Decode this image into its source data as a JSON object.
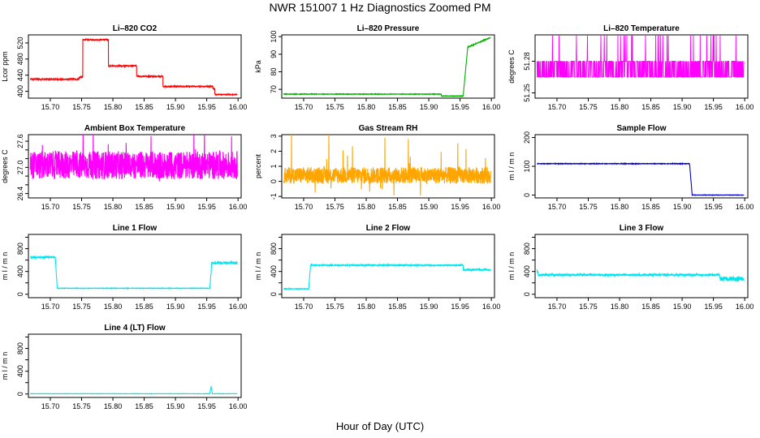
{
  "page": {
    "title": "NWR  151007  1 Hz Diagnostics Zoomed PM",
    "x_axis_title": "Hour of Day (UTC)"
  },
  "chart_data": [
    {
      "id": "co2",
      "type": "line",
      "title": "Li–820 CO2",
      "ylabel": "Lcor ppm",
      "color": "#ff0000",
      "xlim": [
        15.665,
        16.005
      ],
      "ylim": [
        383,
        540
      ],
      "yticks": [
        400,
        440,
        480,
        520
      ],
      "ytick_labels": [
        "400",
        "440",
        "480",
        "520"
      ],
      "xticks": [
        15.7,
        15.75,
        15.8,
        15.85,
        15.9,
        15.95,
        16.0
      ],
      "xtick_labels": [
        "15.70",
        "15.75",
        "15.80",
        "15.85",
        "15.90",
        "15.95",
        "16.00"
      ],
      "segments": [
        {
          "x0": 15.668,
          "x1": 15.746,
          "level": 430,
          "noise": 1.5
        },
        {
          "x0": 15.746,
          "x1": 15.752,
          "level": 435,
          "noise": 2
        },
        {
          "x0": 15.752,
          "x1": 15.793,
          "level": 528,
          "noise": 1.5
        },
        {
          "x0": 15.793,
          "x1": 15.838,
          "level": 463,
          "noise": 1.5
        },
        {
          "x0": 15.838,
          "x1": 15.88,
          "level": 437,
          "noise": 1.5
        },
        {
          "x0": 15.88,
          "x1": 15.96,
          "level": 412,
          "noise": 1.5
        },
        {
          "x0": 15.96,
          "x1": 15.963,
          "level": 407,
          "noise": 2
        },
        {
          "x0": 15.963,
          "x1": 15.999,
          "level": 392,
          "noise": 1
        }
      ]
    },
    {
      "id": "pressure",
      "type": "line",
      "title": "Li–820 Pressure",
      "ylabel": "kPa",
      "color": "#00b000",
      "xlim": [
        15.665,
        16.005
      ],
      "ylim": [
        65,
        101
      ],
      "yticks": [
        70,
        80,
        90,
        100
      ],
      "ytick_labels": [
        "70",
        "80",
        "90",
        "100"
      ],
      "xticks": [
        15.7,
        15.75,
        15.8,
        15.85,
        15.9,
        15.95,
        16.0
      ],
      "xtick_labels": [
        "15.70",
        "15.75",
        "15.80",
        "15.85",
        "15.90",
        "15.95",
        "16.00"
      ],
      "segments": [
        {
          "x0": 15.668,
          "x1": 15.92,
          "level": 67.3,
          "noise": 0.15
        },
        {
          "x0": 15.92,
          "x1": 15.955,
          "level": 66.2,
          "noise": 0.15
        },
        {
          "x0": 15.955,
          "x1": 15.962,
          "level_from": 66.5,
          "level_to": 93,
          "noise": 0.3
        },
        {
          "x0": 15.962,
          "x1": 15.999,
          "level_from": 94,
          "level_to": 99.5,
          "noise": 0.2
        }
      ]
    },
    {
      "id": "temperature",
      "type": "line",
      "title": "Li–820 Temperature",
      "ylabel": "degrees C",
      "color": "#ff00ff",
      "xlim": [
        15.665,
        16.005
      ],
      "ylim": [
        51.245,
        51.305
      ],
      "yticks": [
        51.25,
        51.28
      ],
      "ytick_labels": [
        "51.25",
        "51.28"
      ],
      "xticks": [
        15.7,
        15.75,
        15.8,
        15.85,
        15.9,
        15.95,
        16.0
      ],
      "xtick_labels": [
        "15.70",
        "15.75",
        "15.80",
        "15.85",
        "15.90",
        "15.95",
        "16.00"
      ],
      "digital": {
        "x0": 15.668,
        "x1": 15.999,
        "base": 51.28,
        "low": 51.265,
        "high": 51.305,
        "prob_low": 0.55,
        "prob_high": 0.05
      }
    },
    {
      "id": "box-temp",
      "type": "line",
      "title": "Ambient Box Temperature",
      "ylabel": "degrees C",
      "color": "#ff00ff",
      "xlim": [
        15.665,
        16.005
      ],
      "ylim": [
        26.3,
        27.75
      ],
      "yticks": [
        26.4,
        26.6,
        26.8,
        27.0,
        27.2,
        27.4,
        27.6
      ],
      "ytick_labels": [
        "26.4",
        "",
        "",
        "27.0",
        "",
        "",
        "27.6"
      ],
      "xticks": [
        15.7,
        15.75,
        15.8,
        15.85,
        15.9,
        15.95,
        16.0
      ],
      "xtick_labels": [
        "15.70",
        "15.75",
        "15.80",
        "15.85",
        "15.90",
        "15.95",
        "16.00"
      ],
      "noise_series": {
        "x0": 15.668,
        "x1": 15.999,
        "mean": 27.05,
        "amp": 0.32,
        "spike": 0.62
      }
    },
    {
      "id": "rh",
      "type": "line",
      "title": "Gas Stream RH",
      "ylabel": "percent",
      "color": "#ffa500",
      "xlim": [
        15.665,
        16.005
      ],
      "ylim": [
        -1.1,
        3.1
      ],
      "yticks": [
        -1,
        0,
        1,
        2,
        3
      ],
      "ytick_labels": [
        "-1",
        "0",
        "1",
        "2",
        "3"
      ],
      "xticks": [
        15.7,
        15.75,
        15.8,
        15.85,
        15.9,
        15.95,
        16.0
      ],
      "xtick_labels": [
        "15.70",
        "15.75",
        "15.80",
        "15.85",
        "15.90",
        "15.95",
        "16.00"
      ],
      "noise_series": {
        "x0": 15.668,
        "x1": 15.999,
        "mean": 0.4,
        "amp": 0.55,
        "spike": 2.4
      }
    },
    {
      "id": "sample-flow",
      "type": "line",
      "title": "Sample Flow",
      "ylabel": "m l / m n",
      "color": "#0000cc",
      "xlim": [
        15.665,
        16.005
      ],
      "ylim": [
        -10,
        210
      ],
      "yticks": [
        0,
        100,
        200
      ],
      "ytick_labels": [
        "0",
        "100",
        "200"
      ],
      "xticks": [
        15.7,
        15.75,
        15.8,
        15.85,
        15.9,
        15.95,
        16.0
      ],
      "xtick_labels": [
        "15.70",
        "15.75",
        "15.80",
        "15.85",
        "15.90",
        "15.95",
        "16.00"
      ],
      "segments": [
        {
          "x0": 15.668,
          "x1": 15.912,
          "level": 109,
          "noise": 1
        },
        {
          "x0": 15.912,
          "x1": 15.916,
          "level_from": 106,
          "level_to": 2,
          "noise": 1
        },
        {
          "x0": 15.916,
          "x1": 15.999,
          "level": 0,
          "noise": 0.6
        }
      ]
    },
    {
      "id": "line1-flow",
      "type": "line",
      "title": "Line 1 Flow",
      "ylabel": "m l / m n",
      "color": "#00e5ee",
      "xlim": [
        15.665,
        16.005
      ],
      "ylim": [
        -60,
        1050
      ],
      "yticks": [
        0,
        200,
        400,
        600,
        800,
        1000
      ],
      "ytick_labels": [
        "0",
        "",
        "400",
        "",
        "800",
        ""
      ],
      "xticks": [
        15.7,
        15.75,
        15.8,
        15.85,
        15.9,
        15.95,
        16.0
      ],
      "xtick_labels": [
        "15.70",
        "15.75",
        "15.80",
        "15.85",
        "15.90",
        "15.95",
        "16.00"
      ],
      "segments": [
        {
          "x0": 15.668,
          "x1": 15.708,
          "level": 650,
          "noise": 15
        },
        {
          "x0": 15.708,
          "x1": 15.711,
          "level_from": 640,
          "level_to": 110,
          "noise": 5
        },
        {
          "x0": 15.711,
          "x1": 15.955,
          "level": 105,
          "noise": 4
        },
        {
          "x0": 15.955,
          "x1": 15.958,
          "level_from": 110,
          "level_to": 540,
          "noise": 5
        },
        {
          "x0": 15.958,
          "x1": 15.999,
          "level": 550,
          "noise": 18
        }
      ]
    },
    {
      "id": "line2-flow",
      "type": "line",
      "title": "Line 2 Flow",
      "ylabel": "m l / m n",
      "color": "#00e5ee",
      "xlim": [
        15.665,
        16.005
      ],
      "ylim": [
        -60,
        1050
      ],
      "yticks": [
        0,
        200,
        400,
        600,
        800,
        1000
      ],
      "ytick_labels": [
        "0",
        "",
        "400",
        "",
        "800",
        ""
      ],
      "xticks": [
        15.7,
        15.75,
        15.8,
        15.85,
        15.9,
        15.95,
        16.0
      ],
      "xtick_labels": [
        "15.70",
        "15.75",
        "15.80",
        "15.85",
        "15.90",
        "15.95",
        "16.00"
      ],
      "segments": [
        {
          "x0": 15.668,
          "x1": 15.708,
          "level": 95,
          "noise": 4
        },
        {
          "x0": 15.708,
          "x1": 15.711,
          "level_from": 100,
          "level_to": 500,
          "noise": 5
        },
        {
          "x0": 15.711,
          "x1": 15.955,
          "level": 510,
          "noise": 10
        },
        {
          "x0": 15.955,
          "x1": 15.999,
          "level": 430,
          "noise": 14
        }
      ]
    },
    {
      "id": "line3-flow",
      "type": "line",
      "title": "Line 3 Flow",
      "ylabel": "m l / m n",
      "color": "#00e5ee",
      "xlim": [
        15.665,
        16.005
      ],
      "ylim": [
        -60,
        1050
      ],
      "yticks": [
        0,
        200,
        400,
        600,
        800,
        1000
      ],
      "ytick_labels": [
        "0",
        "",
        "400",
        "",
        "800",
        ""
      ],
      "xticks": [
        15.7,
        15.75,
        15.8,
        15.85,
        15.9,
        15.95,
        16.0
      ],
      "xtick_labels": [
        "15.70",
        "15.75",
        "15.80",
        "15.85",
        "15.90",
        "15.95",
        "16.00"
      ],
      "segments": [
        {
          "x0": 15.668,
          "x1": 15.67,
          "level_from": 420,
          "level_to": 360,
          "noise": 20
        },
        {
          "x0": 15.67,
          "x1": 15.96,
          "level": 340,
          "noise": 18
        },
        {
          "x0": 15.96,
          "x1": 15.999,
          "level": 270,
          "noise": 40
        }
      ]
    },
    {
      "id": "line4-flow",
      "type": "line",
      "title": "Line 4 (LT) Flow",
      "ylabel": "m l / m n",
      "color": "#00e5ee",
      "xlim": [
        15.665,
        16.005
      ],
      "ylim": [
        -60,
        1050
      ],
      "yticks": [
        0,
        200,
        400,
        600,
        800,
        1000
      ],
      "ytick_labels": [
        "0",
        "",
        "400",
        "",
        "800",
        ""
      ],
      "xticks": [
        15.7,
        15.75,
        15.8,
        15.85,
        15.9,
        15.95,
        16.0
      ],
      "xtick_labels": [
        "15.70",
        "15.75",
        "15.80",
        "15.85",
        "15.90",
        "15.95",
        "16.00"
      ],
      "segments": [
        {
          "x0": 15.668,
          "x1": 15.955,
          "level": 5,
          "noise": 2
        },
        {
          "x0": 15.955,
          "x1": 15.957,
          "level_from": 10,
          "level_to": 140,
          "noise": 5
        },
        {
          "x0": 15.957,
          "x1": 15.959,
          "level_from": 120,
          "level_to": 10,
          "noise": 5
        },
        {
          "x0": 15.959,
          "x1": 15.999,
          "level": 5,
          "noise": 2
        }
      ]
    }
  ]
}
